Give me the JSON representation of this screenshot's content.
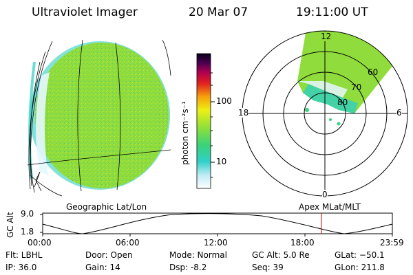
{
  "header": {
    "instrument": "Ultraviolet Imager",
    "date": "20 Mar 07",
    "time": "19:11:00 UT"
  },
  "colorbar": {
    "label": "photon cm⁻²s⁻¹",
    "ticks": [
      "100",
      "10"
    ]
  },
  "panels": {
    "left_label": "Geographic Lat/Lon",
    "right_label": "Apex MLat/MLT"
  },
  "polar": {
    "mlt_labels": [
      "12",
      "18",
      "6",
      "0"
    ],
    "lat_labels": [
      "60",
      "70",
      "80"
    ]
  },
  "altitude_plot": {
    "ylabel": "GC Alt",
    "yticks": [
      "9.0",
      "1.8"
    ],
    "xticks": [
      "00:00",
      "06:00",
      "12:00",
      "18:00",
      "23:59"
    ],
    "current_time_fraction": 0.797
  },
  "info": {
    "filter": "Flt: LBHL",
    "ip": "IP: 36.0",
    "door": "Door: Open",
    "gain": "Gain: 14",
    "mode": "Mode: Normal",
    "dsp": "Dsp:    -8.2",
    "gc_alt": "GC Alt: 5.0 Re",
    "seq": "Seq: 39",
    "glat": "GLat: −50.1",
    "glon": "GLon: 211.8"
  },
  "colors": {
    "disk": "#8fdc3c",
    "disk_edge": "#2ecfc0",
    "limb": "#e6f7ff",
    "marker": "#c00000"
  }
}
